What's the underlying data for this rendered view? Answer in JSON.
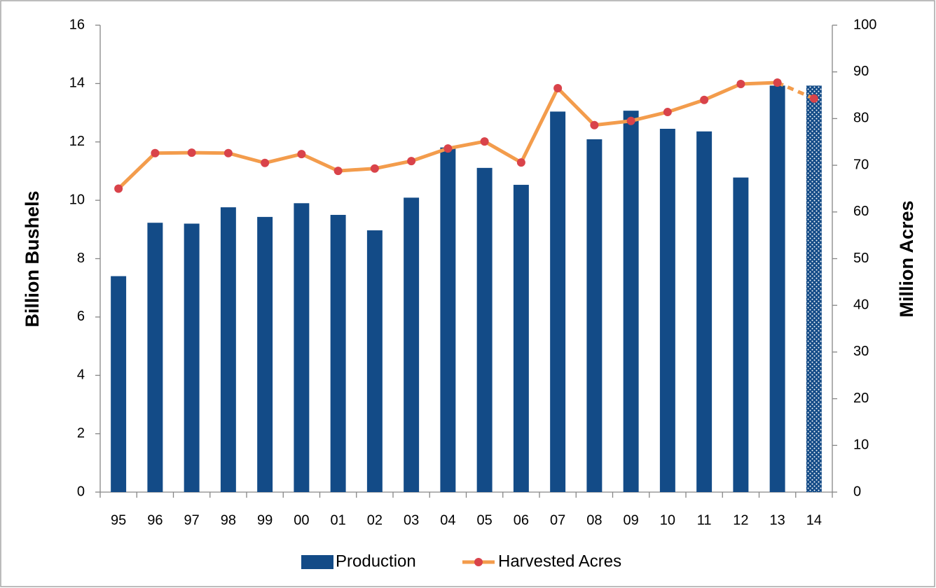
{
  "chart_data": {
    "type": "bar",
    "y_label": "Billion Bushels",
    "y2_label": "Million Acres",
    "categories": [
      "95",
      "96",
      "97",
      "98",
      "99",
      "00",
      "01",
      "02",
      "03",
      "04",
      "05",
      "06",
      "07",
      "08",
      "09",
      "10",
      "11",
      "12",
      "13",
      "14"
    ],
    "series": [
      {
        "name": "Production",
        "type": "bar",
        "color": "#134b87",
        "values": [
          7.4,
          9.23,
          9.2,
          9.76,
          9.43,
          9.9,
          9.5,
          8.97,
          10.09,
          11.81,
          11.11,
          10.53,
          13.04,
          12.09,
          13.07,
          12.45,
          12.36,
          10.78,
          13.93,
          13.93
        ]
      },
      {
        "name": "Harvested Acres",
        "type": "line",
        "axis": "y2",
        "color": "#f39c4c",
        "marker_color": "#d9434a",
        "values": [
          65.0,
          72.6,
          72.7,
          72.6,
          70.5,
          72.4,
          68.8,
          69.3,
          70.9,
          73.6,
          75.1,
          70.6,
          86.5,
          78.6,
          79.5,
          81.4,
          84.0,
          87.4,
          87.7,
          84.3
        ]
      }
    ],
    "ylim": [
      0,
      16
    ],
    "yticks": [
      0,
      2,
      4,
      6,
      8,
      10,
      12,
      14,
      16
    ],
    "y2lim": [
      0,
      100
    ],
    "y2ticks": [
      0,
      10,
      20,
      30,
      40,
      50,
      60,
      70,
      80,
      90,
      100
    ],
    "legend": "bottom"
  }
}
